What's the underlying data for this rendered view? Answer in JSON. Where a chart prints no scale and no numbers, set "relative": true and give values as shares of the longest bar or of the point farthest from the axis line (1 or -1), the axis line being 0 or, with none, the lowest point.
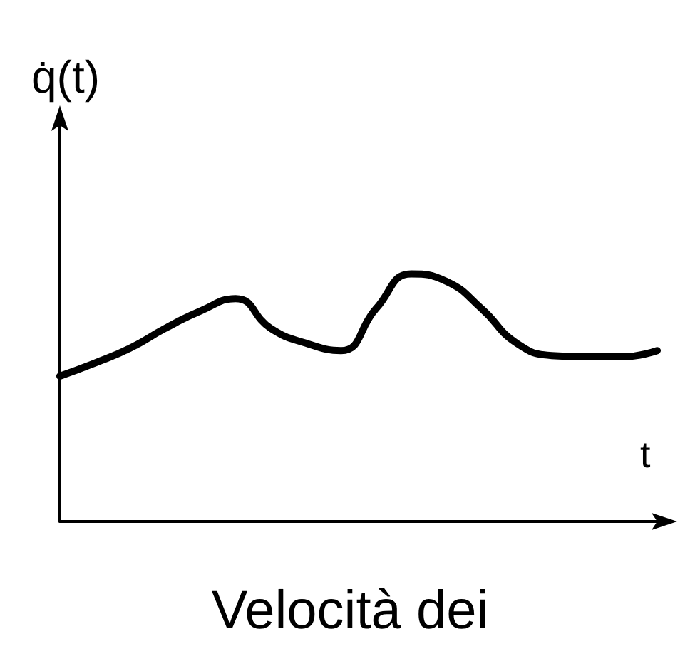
{
  "chart_data": {
    "type": "line",
    "relative": true,
    "ylabel": "q̇(t)",
    "xlabel": "t",
    "annotations": [
      "Velocità dei"
    ],
    "marker": "none",
    "grid": false,
    "categories": [
      null,
      null,
      null,
      null,
      null,
      null,
      null,
      null,
      null,
      null,
      null,
      null,
      null,
      null,
      null,
      null,
      null,
      null
    ],
    "series": [
      {
        "color": "#000000",
        "values": [
          0.587,
          0.64,
          0.7,
          0.78,
          0.85,
          0.9,
          0.78,
          0.72,
          0.69,
          0.86,
          1,
          0.97,
          0.86,
          0.72,
          0.67,
          0.665,
          0.665,
          0.69
        ]
      }
    ]
  }
}
